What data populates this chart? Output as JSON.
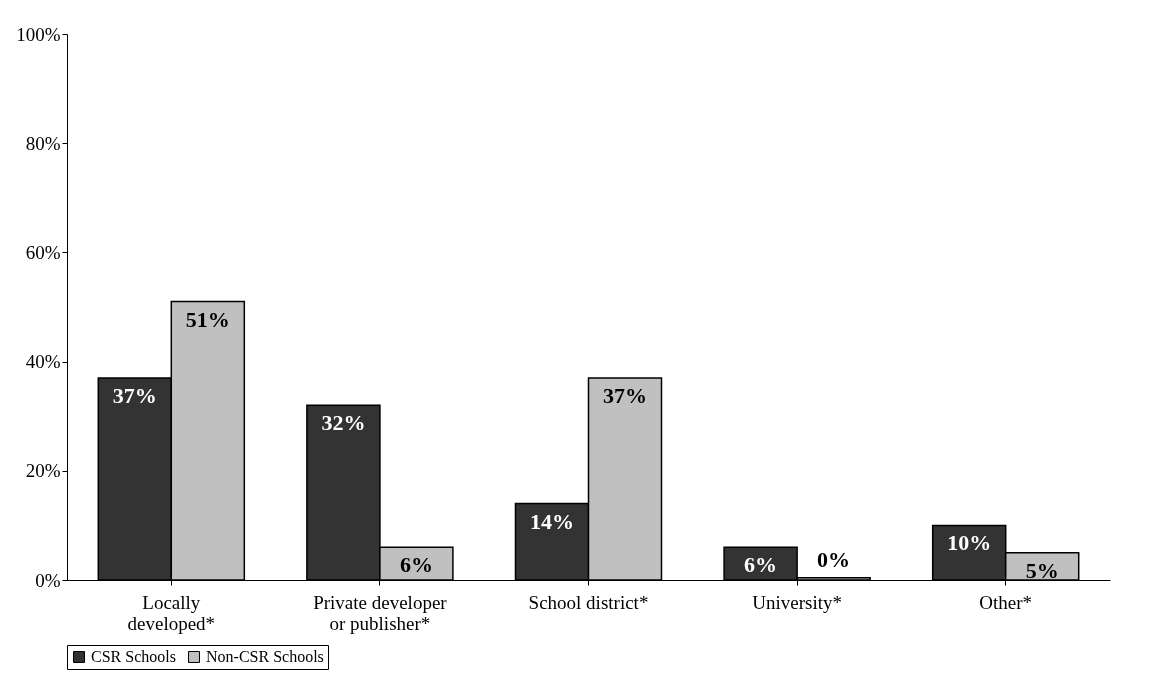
{
  "chart_data": {
    "type": "bar",
    "categories": [
      "Locally developed*",
      "Private developer or publisher*",
      "School district*",
      "University*",
      "Other*"
    ],
    "series": [
      {
        "name": "CSR Schools",
        "color": "#333333",
        "values": [
          37,
          32,
          14,
          6,
          10
        ],
        "value_labels": [
          "37%",
          "32%",
          "14%",
          "6%",
          "10%"
        ]
      },
      {
        "name": "Non-CSR Schools",
        "color": "#c0c0c0",
        "values": [
          51,
          6,
          37,
          0.4,
          5
        ],
        "value_labels": [
          "51%",
          "6%",
          "37%",
          "0%",
          "5%"
        ]
      }
    ],
    "ylim": [
      0,
      100
    ],
    "yticks": [
      {
        "value": 0,
        "label": "0%"
      },
      {
        "value": 20,
        "label": "20%"
      },
      {
        "value": 40,
        "label": "40%"
      },
      {
        "value": 60,
        "label": "60%"
      },
      {
        "value": 80,
        "label": "80%"
      },
      {
        "value": 100,
        "label": "100%"
      }
    ],
    "grid": false,
    "legend": "bottom"
  }
}
